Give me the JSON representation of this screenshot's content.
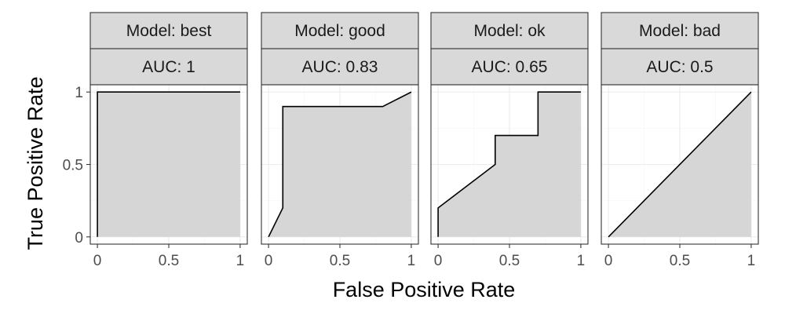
{
  "chart_data": {
    "type": "area",
    "xlabel": "False Positive Rate",
    "ylabel": "True Positive Rate",
    "xlim": [
      0,
      1
    ],
    "ylim": [
      0,
      1
    ],
    "x_ticks": [
      {
        "value": 0,
        "label": "0"
      },
      {
        "value": 0.5,
        "label": "0.5"
      },
      {
        "value": 1,
        "label": "1"
      }
    ],
    "y_ticks": [
      {
        "value": 0,
        "label": "0"
      },
      {
        "value": 0.5,
        "label": "0.5"
      },
      {
        "value": 1,
        "label": "1"
      }
    ],
    "grid": true,
    "area_color": "#d6d6d6",
    "line_color": "#000000",
    "strip_color": "#d9d9d9",
    "panels": [
      {
        "model_label": "Model: best",
        "auc_label": "AUC: 1",
        "points": [
          [
            0,
            0
          ],
          [
            0,
            1
          ],
          [
            1,
            1
          ]
        ]
      },
      {
        "model_label": "Model: good",
        "auc_label": "AUC: 0.83",
        "points": [
          [
            0,
            0
          ],
          [
            0.1,
            0.2
          ],
          [
            0.1,
            0.9
          ],
          [
            0.8,
            0.9
          ],
          [
            1,
            1
          ]
        ]
      },
      {
        "model_label": "Model: ok",
        "auc_label": "AUC: 0.65",
        "points": [
          [
            0,
            0
          ],
          [
            0,
            0.2
          ],
          [
            0.4,
            0.5
          ],
          [
            0.4,
            0.7
          ],
          [
            0.7,
            0.7
          ],
          [
            0.7,
            1
          ],
          [
            1,
            1
          ]
        ]
      },
      {
        "model_label": "Model: bad",
        "auc_label": "AUC: 0.5",
        "points": [
          [
            0,
            0
          ],
          [
            1,
            1
          ]
        ]
      }
    ]
  }
}
